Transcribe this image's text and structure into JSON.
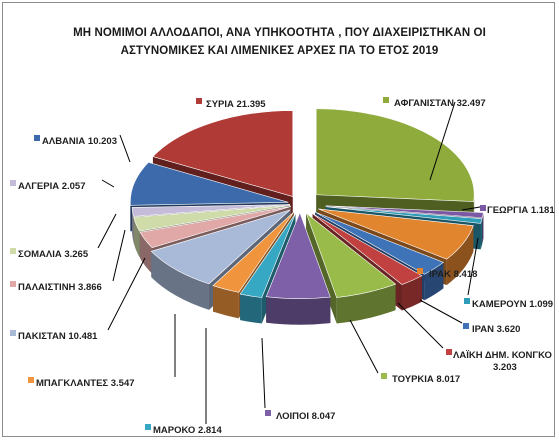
{
  "chart_data": {
    "type": "pie",
    "title_line1": "ΜΗ ΝΟΜΙΜΟΙ ΑΛΛΟΔΑΠΟΙ, ΑΝΑ ΥΠΗΚΟΟΤΗΤΑ  , ΠΟΥ ΔΙΑΧΕΙΡΙΣΤΗΚΑΝ ΟΙ",
    "title_line2": "ΑΣΤΥΝΟΜΙΚΕΣ ΚΑΙ ΛΙΜΕΝΙΚΕΣ ΑΡΧΕΣ ΠΑ ΤΟ ΕΤΟΣ 2019",
    "three_d": true,
    "exploded": true,
    "slices": [
      {
        "name": "ΑΦΓΑΝΙΣΤΑΝ",
        "value": 32497,
        "label": "ΑΦΓΑΝΙΣΤΑΝ 32.497",
        "color": "#8fab3c"
      },
      {
        "name": "ΓΕΩΡΓΙΑ",
        "value": 1181,
        "label": "ΓΕΩΡΓΙΑ 1.181",
        "color": "#7a58a3"
      },
      {
        "name": "ΚΑΜΕΡΟΥΝ",
        "value": 1099,
        "label": "ΚΑΜΕΡΟΥΝ 1.099",
        "color": "#2f9db8"
      },
      {
        "name": "ΙΡΑΚ",
        "value": 8418,
        "label": "ΙΡΑΚ 8.418",
        "color": "#e2852f"
      },
      {
        "name": "ΙΡΑΝ",
        "value": 3620,
        "label": "ΙΡΑΝ 3.620",
        "color": "#3f73b8"
      },
      {
        "name": "ΛΑΪΚΗ ΔΗΜ. ΚΟΝΓΚΟ",
        "value": 3203,
        "label": "ΛΑΪΚΗ ΔΗΜ. ΚΟΝΓΚΟ 3.203",
        "color": "#c0413f"
      },
      {
        "name": "ΤΟΥΡΚΙΑ",
        "value": 8017,
        "label": "ΤΟΥΡΚΙΑ 8.017",
        "color": "#99bb4a"
      },
      {
        "name": "ΛΟΙΠΟΙ",
        "value": 8047,
        "label": "ΛΟΙΠΟΙ 8.047",
        "color": "#7d60a8"
      },
      {
        "name": "ΜΑΡΟΚΟ",
        "value": 2814,
        "label": "ΜΑΡΟΚΟ 2.814",
        "color": "#37a8c4"
      },
      {
        "name": "ΜΠΑΓΚΛΑΝΤΕΣ",
        "value": 3547,
        "label": "ΜΠΑΓΚΛΑΝΤΕΣ 3.547",
        "color": "#f0953e"
      },
      {
        "name": "ΠΑΚΙΣΤΑΝ",
        "value": 10481,
        "label": "ΠΑΚΙΣΤΑΝ 10.481",
        "color": "#a9bad8"
      },
      {
        "name": "ΠΑΛΑΙΣΤΙΝΗ",
        "value": 3866,
        "label": "ΠΑΛΑΙΣΤΙΝΗ  3.866",
        "color": "#e0a8a7"
      },
      {
        "name": "ΣΟΜΑΛΙΑ",
        "value": 3265,
        "label": "ΣΟΜΑΛΙΑ 3.265",
        "color": "#cfdcaa"
      },
      {
        "name": "ΑΛΓΕΡΙΑ",
        "value": 2057,
        "label": "ΑΛΓΕΡΙΑ 2.057",
        "color": "#c4bcd8"
      },
      {
        "name": "ΑΛΒΑΝΙΑ",
        "value": 10203,
        "label": "ΑΛΒΑΝΙΑ 10.203",
        "color": "#3c6aaa"
      },
      {
        "name": "ΣΥΡΙΑ",
        "value": 21395,
        "label": "ΣΥΡΙΑ 21.395",
        "color": "#b03a36"
      }
    ]
  }
}
